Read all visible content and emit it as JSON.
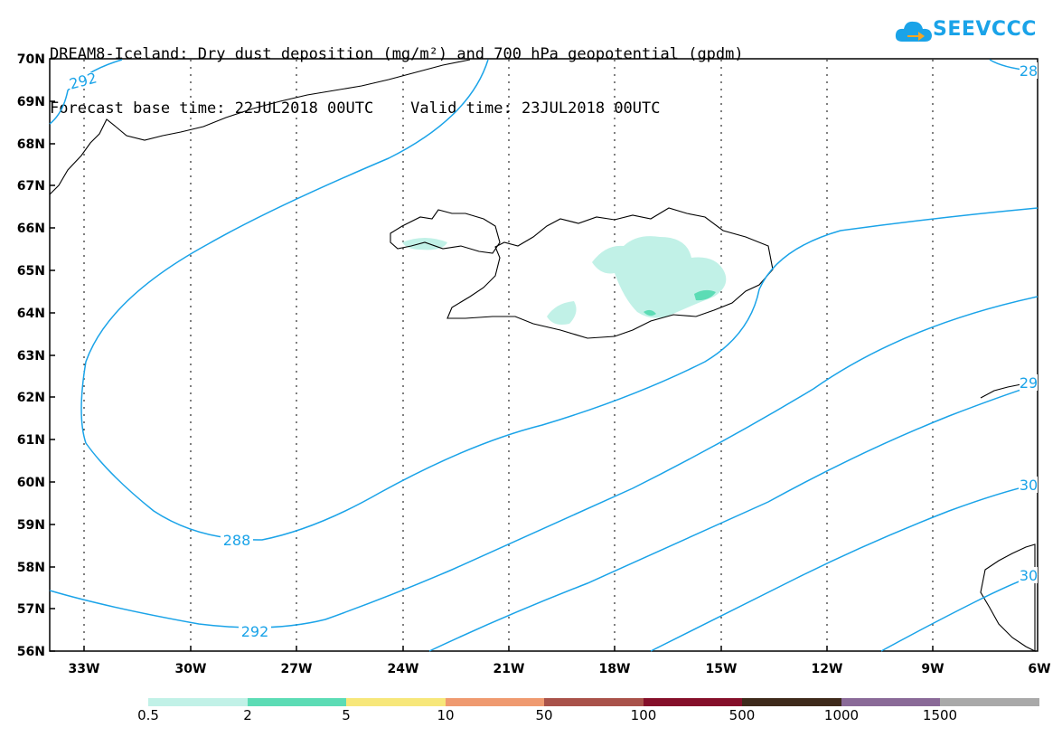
{
  "title": {
    "line1": "DREAM8-Iceland: Dry dust deposition (mg/m²) and 700 hPa geopotential (gpdm)",
    "line2": "Forecast base time: 22JUL2018 00UTC    Valid time: 23JUL2018 00UTC"
  },
  "logo": {
    "text": "SEEVCCC",
    "icon": "cloud-arrow-icon",
    "color": "#1aa3e8"
  },
  "map": {
    "lat_labels": [
      "70N",
      "69N",
      "68N",
      "67N",
      "66N",
      "65N",
      "64N",
      "63N",
      "62N",
      "61N",
      "60N",
      "59N",
      "58N",
      "57N",
      "56N"
    ],
    "lon_labels": [
      "33W",
      "30W",
      "27W",
      "24W",
      "21W",
      "18W",
      "15W",
      "12W",
      "9W",
      "6W"
    ],
    "contour_labels": [
      "292",
      "288",
      "292",
      "28",
      "29",
      "30",
      "30"
    ],
    "contour_color": "#1aa3e8"
  },
  "legend": {
    "labels": [
      "0.5",
      "2",
      "5",
      "10",
      "50",
      "100",
      "500",
      "1000",
      "1500"
    ],
    "colors": [
      "#c1f1e7",
      "#5cdcb5",
      "#f7e77a",
      "#ef9a70",
      "#a9524a",
      "#850f2a",
      "#3e2a1b",
      "#8a6a98",
      "#a9a9a9"
    ]
  }
}
